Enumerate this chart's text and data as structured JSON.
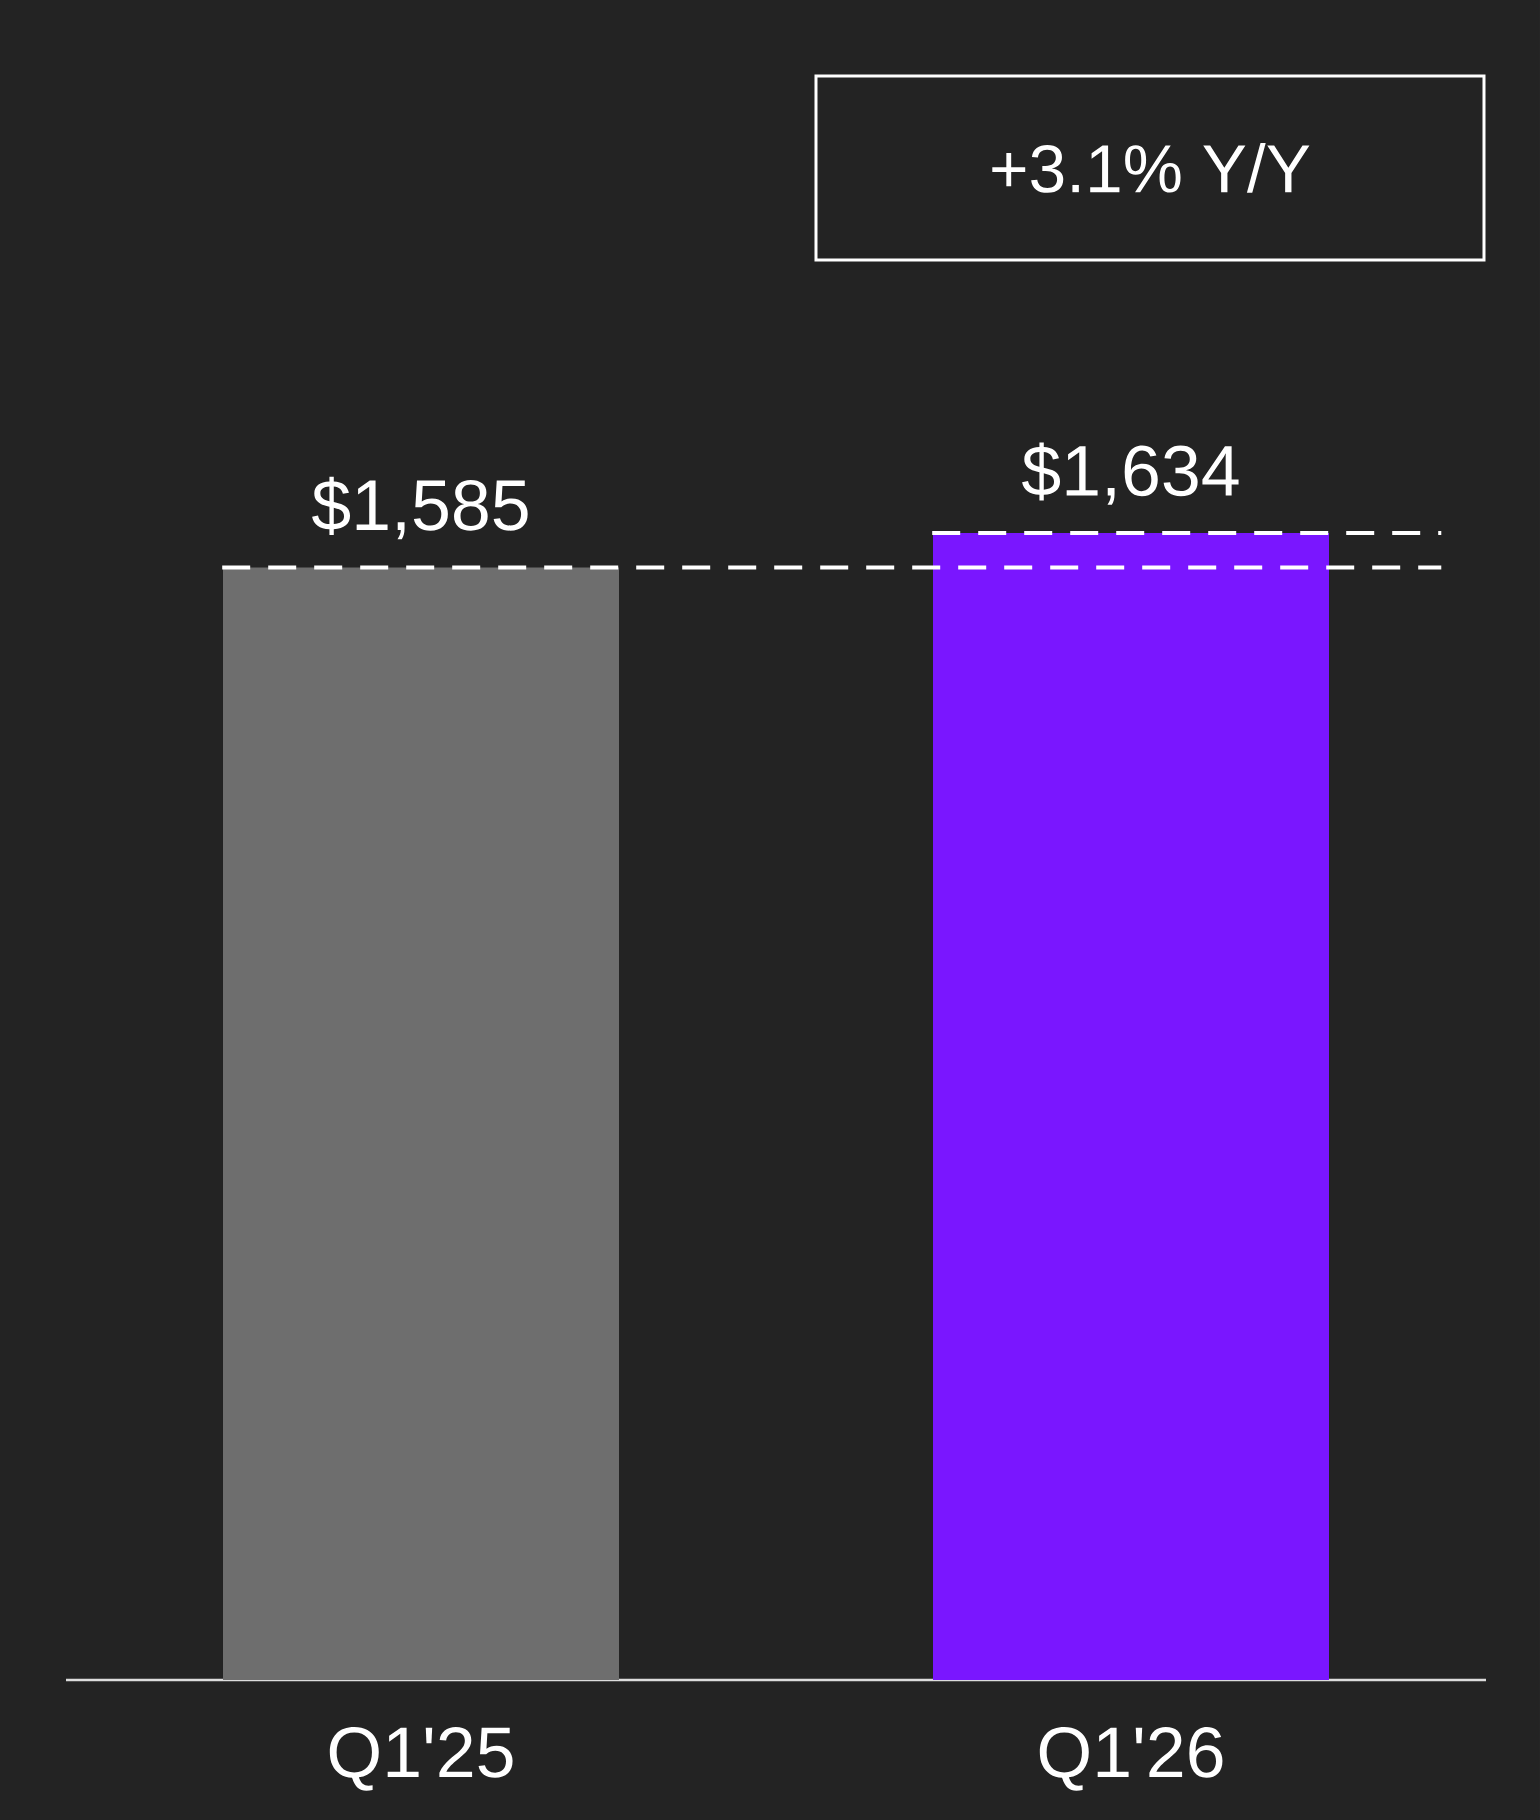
{
  "chart_data": {
    "type": "bar",
    "categories": [
      "Q1'25",
      "Q1'26"
    ],
    "values": [
      1585,
      1634
    ],
    "value_labels": [
      "$1,585",
      "$1,634"
    ],
    "colors": [
      "#6e6e6e",
      "#7a16ff"
    ],
    "tick_labels": "x",
    "grid": false,
    "annotations": [
      "+3.1% Y/Y"
    ],
    "ref_lines": [
      {
        "axis": "y",
        "value": 1585,
        "color": "#ffffff",
        "line_style": "dashed"
      },
      {
        "axis": "y",
        "value": 1634,
        "color": "#ffffff",
        "line_style": "dashed"
      }
    ]
  }
}
